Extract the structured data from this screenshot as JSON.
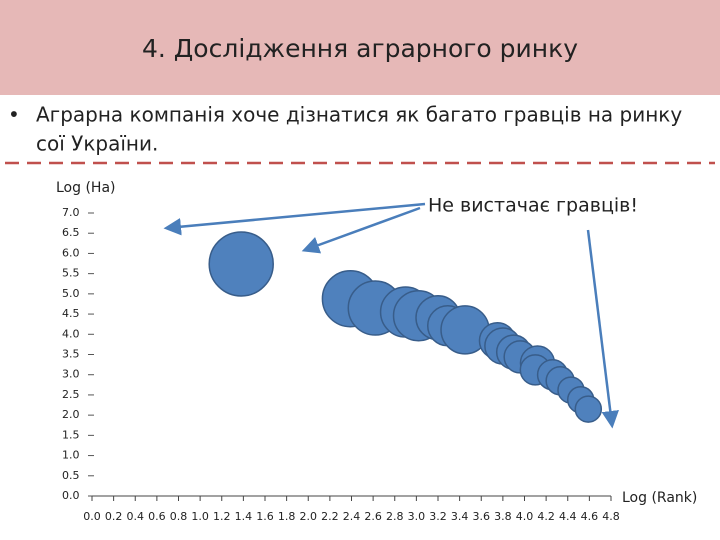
{
  "header": {
    "title": "4. Дослідження аграрного ринку"
  },
  "bullet": {
    "lines": [
      "Аграрна компанія хоче дізнатися як багато гравців на ринку",
      "сої України."
    ]
  },
  "chart_data": {
    "type": "bubble",
    "y_label": "Log (Ha)",
    "x_label": "Log (Rank)",
    "annotation": "Не вистачає гравців!",
    "x": [
      1.38,
      2.39,
      2.62,
      2.9,
      3.02,
      3.2,
      3.29,
      3.45,
      3.75,
      3.8,
      3.9,
      3.96,
      4.12,
      4.1,
      4.26,
      4.33,
      4.43,
      4.52,
      4.59
    ],
    "values": [
      5.74,
      4.88,
      4.65,
      4.55,
      4.46,
      4.41,
      4.21,
      4.11,
      3.84,
      3.71,
      3.56,
      3.44,
      3.29,
      3.12,
      3.0,
      2.85,
      2.62,
      2.38,
      2.15
    ],
    "sizes": [
      32,
      28,
      27,
      25,
      25,
      22,
      20,
      24,
      18,
      18,
      17,
      16,
      17,
      15,
      15,
      14,
      13,
      13,
      13
    ],
    "color": "#4f81bd",
    "xlim": [
      0,
      4.8
    ],
    "ylim": [
      0,
      7
    ],
    "xticks": [
      {
        "value": 0,
        "label": "0.0"
      },
      0.2,
      0.4,
      0.6,
      0.8,
      {
        "value": 1,
        "label": "1.0"
      },
      1.2,
      1.4,
      1.6,
      1.8,
      {
        "value": 2,
        "label": "2.0"
      },
      2.2,
      2.4,
      2.6,
      2.8,
      {
        "value": 3,
        "label": "3.0"
      },
      3.2,
      3.4,
      3.6,
      3.8,
      {
        "value": 4,
        "label": "4.0"
      },
      4.2,
      4.4,
      4.6,
      4.8
    ],
    "yticks": [
      {
        "value": 0,
        "label": "0.0"
      },
      0.5,
      {
        "value": 1,
        "label": "1.0"
      },
      1.5,
      {
        "value": 2,
        "label": "2.0"
      },
      2.5,
      {
        "value": 3,
        "label": "3.0"
      },
      3.5,
      {
        "value": 4,
        "label": "4.0"
      },
      4.5,
      {
        "value": 5,
        "label": "5.0"
      },
      5.5,
      {
        "value": 6,
        "label": "6.0"
      },
      6.5,
      {
        "value": 7,
        "label": "7.0"
      }
    ]
  }
}
